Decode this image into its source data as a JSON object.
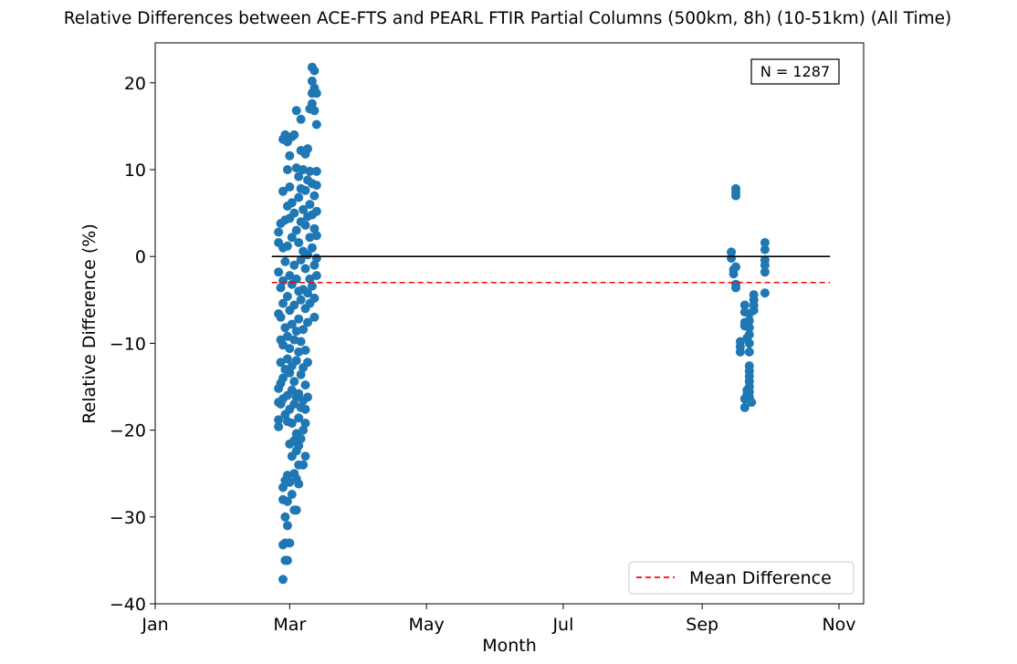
{
  "chart_data": {
    "type": "scatter",
    "title": "Relative Differences between ACE-FTS and PEARL FTIR Partial Columns (500km, 8h) (10-51km) (All Time)",
    "xlabel": "Month",
    "ylabel": "Relative Difference (%)",
    "xlim": [
      "2000-01-01",
      "2000-11-12"
    ],
    "ylim": [
      -40,
      24.6
    ],
    "x_ticks": [
      {
        "label": "Jan",
        "date": "2000-01-01"
      },
      {
        "label": "Mar",
        "date": "2000-03-01"
      },
      {
        "label": "May",
        "date": "2000-05-01"
      },
      {
        "label": "Jul",
        "date": "2000-07-01"
      },
      {
        "label": "Sep",
        "date": "2000-09-01"
      },
      {
        "label": "Nov",
        "date": "2000-11-01"
      }
    ],
    "y_ticks": [
      20,
      10,
      0,
      -10,
      -20,
      -30,
      -40
    ],
    "y_tick_labels": [
      "20",
      "10",
      "0",
      "−10",
      "−20",
      "−30",
      "−40"
    ],
    "annotation": "N = 1287",
    "legend": {
      "position": "lower-right",
      "entries": [
        "Mean Difference"
      ]
    },
    "grid": false,
    "zero_line": {
      "y": 0,
      "x_start": "2000-02-22",
      "x_end": "2000-10-28",
      "color": "#000000"
    },
    "mean_line": {
      "name": "Mean Difference",
      "y": -3,
      "x_start": "2000-02-22",
      "x_end": "2000-10-28",
      "color": "#ff0000",
      "style": "dashed"
    },
    "series": [
      {
        "color": "#1f77b4",
        "points": [
          [
            "2000-02-25",
            2.8
          ],
          [
            "2000-02-25",
            1.6
          ],
          [
            "2000-02-25",
            -1.8
          ],
          [
            "2000-02-25",
            -6.6
          ],
          [
            "2000-02-25",
            -15.2
          ],
          [
            "2000-02-25",
            -16.8
          ],
          [
            "2000-02-25",
            -18.8
          ],
          [
            "2000-02-25",
            -19.6
          ],
          [
            "2000-02-26",
            3.8
          ],
          [
            "2000-02-26",
            -3.6
          ],
          [
            "2000-02-26",
            -7.0
          ],
          [
            "2000-02-26",
            -9.6
          ],
          [
            "2000-02-26",
            -12.2
          ],
          [
            "2000-02-26",
            -14.6
          ],
          [
            "2000-02-26",
            -17.0
          ],
          [
            "2000-02-27",
            13.5
          ],
          [
            "2000-02-27",
            7.5
          ],
          [
            "2000-02-27",
            1.0
          ],
          [
            "2000-02-27",
            -2.8
          ],
          [
            "2000-02-27",
            -5.4
          ],
          [
            "2000-02-27",
            -10.2
          ],
          [
            "2000-02-27",
            -14.0
          ],
          [
            "2000-02-27",
            -16.4
          ],
          [
            "2000-02-27",
            -26.6
          ],
          [
            "2000-02-27",
            -28.0
          ],
          [
            "2000-02-27",
            -33.2
          ],
          [
            "2000-02-27",
            -37.2
          ],
          [
            "2000-02-28",
            14.0
          ],
          [
            "2000-02-28",
            4.2
          ],
          [
            "2000-02-28",
            -0.6
          ],
          [
            "2000-02-28",
            -8.2
          ],
          [
            "2000-02-28",
            -13.0
          ],
          [
            "2000-02-28",
            -18.2
          ],
          [
            "2000-02-28",
            -25.8
          ],
          [
            "2000-02-28",
            -30.0
          ],
          [
            "2000-02-28",
            -33.0
          ],
          [
            "2000-02-28",
            -35.0
          ],
          [
            "2000-02-29",
            13.2
          ],
          [
            "2000-02-29",
            10.0
          ],
          [
            "2000-02-29",
            5.8
          ],
          [
            "2000-02-29",
            1.2
          ],
          [
            "2000-02-29",
            -4.6
          ],
          [
            "2000-02-29",
            -9.2
          ],
          [
            "2000-02-29",
            -11.8
          ],
          [
            "2000-02-29",
            -16.0
          ],
          [
            "2000-02-29",
            -19.0
          ],
          [
            "2000-02-29",
            -25.2
          ],
          [
            "2000-02-29",
            -28.2
          ],
          [
            "2000-02-29",
            -31.0
          ],
          [
            "2000-02-29",
            -35.0
          ],
          [
            "2000-03-01",
            11.6
          ],
          [
            "2000-03-01",
            8.0
          ],
          [
            "2000-03-01",
            4.4
          ],
          [
            "2000-03-01",
            -2.2
          ],
          [
            "2000-03-01",
            -6.2
          ],
          [
            "2000-03-01",
            -10.6
          ],
          [
            "2000-03-01",
            -13.4
          ],
          [
            "2000-03-01",
            -17.6
          ],
          [
            "2000-03-01",
            -21.6
          ],
          [
            "2000-03-01",
            -26.0
          ],
          [
            "2000-03-01",
            -33.0
          ],
          [
            "2000-03-02",
            13.8
          ],
          [
            "2000-03-02",
            6.2
          ],
          [
            "2000-03-02",
            2.2
          ],
          [
            "2000-03-02",
            -3.2
          ],
          [
            "2000-03-02",
            -7.8
          ],
          [
            "2000-03-02",
            -12.6
          ],
          [
            "2000-03-02",
            -15.4
          ],
          [
            "2000-03-02",
            -19.2
          ],
          [
            "2000-03-02",
            -23.0
          ],
          [
            "2000-03-02",
            -27.4
          ],
          [
            "2000-03-03",
            14.0
          ],
          [
            "2000-03-03",
            5.0
          ],
          [
            "2000-03-03",
            -1.0
          ],
          [
            "2000-03-03",
            -5.6
          ],
          [
            "2000-03-03",
            -9.6
          ],
          [
            "2000-03-03",
            -14.4
          ],
          [
            "2000-03-03",
            -17.0
          ],
          [
            "2000-03-03",
            -21.2
          ],
          [
            "2000-03-03",
            -25.0
          ],
          [
            "2000-03-03",
            -29.2
          ],
          [
            "2000-03-04",
            16.8
          ],
          [
            "2000-03-04",
            10.2
          ],
          [
            "2000-03-04",
            3.0
          ],
          [
            "2000-03-04",
            -2.6
          ],
          [
            "2000-03-04",
            -8.6
          ],
          [
            "2000-03-04",
            -12.0
          ],
          [
            "2000-03-04",
            -16.2
          ],
          [
            "2000-03-04",
            -20.4
          ],
          [
            "2000-03-04",
            -22.4
          ],
          [
            "2000-03-04",
            -25.6
          ],
          [
            "2000-03-04",
            -29.2
          ],
          [
            "2000-03-05",
            9.2
          ],
          [
            "2000-03-05",
            6.8
          ],
          [
            "2000-03-05",
            1.6
          ],
          [
            "2000-03-05",
            -4.0
          ],
          [
            "2000-03-05",
            -7.2
          ],
          [
            "2000-03-05",
            -11.0
          ],
          [
            "2000-03-05",
            -15.8
          ],
          [
            "2000-03-05",
            -18.6
          ],
          [
            "2000-03-05",
            -21.8
          ],
          [
            "2000-03-05",
            -24.0
          ],
          [
            "2000-03-05",
            -26.2
          ],
          [
            "2000-03-06",
            15.8
          ],
          [
            "2000-03-06",
            12.2
          ],
          [
            "2000-03-06",
            7.8
          ],
          [
            "2000-03-06",
            4.0
          ],
          [
            "2000-03-06",
            -0.4
          ],
          [
            "2000-03-06",
            -5.0
          ],
          [
            "2000-03-06",
            -9.8
          ],
          [
            "2000-03-06",
            -13.6
          ],
          [
            "2000-03-06",
            -17.4
          ],
          [
            "2000-03-06",
            -21.0
          ],
          [
            "2000-03-07",
            10.0
          ],
          [
            "2000-03-07",
            5.4
          ],
          [
            "2000-03-07",
            0.6
          ],
          [
            "2000-03-07",
            -3.8
          ],
          [
            "2000-03-07",
            -8.4
          ],
          [
            "2000-03-07",
            -12.8
          ],
          [
            "2000-03-07",
            -16.6
          ],
          [
            "2000-03-07",
            -20.0
          ],
          [
            "2000-03-07",
            -24.0
          ],
          [
            "2000-03-08",
            11.8
          ],
          [
            "2000-03-08",
            7.6
          ],
          [
            "2000-03-08",
            3.6
          ],
          [
            "2000-03-08",
            -1.4
          ],
          [
            "2000-03-08",
            -6.0
          ],
          [
            "2000-03-08",
            -10.8
          ],
          [
            "2000-03-08",
            -14.8
          ],
          [
            "2000-03-08",
            -17.6
          ],
          [
            "2000-03-08",
            -19.2
          ],
          [
            "2000-03-08",
            -23.0
          ],
          [
            "2000-03-09",
            12.4
          ],
          [
            "2000-03-09",
            8.8
          ],
          [
            "2000-03-09",
            4.6
          ],
          [
            "2000-03-09",
            0.2
          ],
          [
            "2000-03-09",
            -4.2
          ],
          [
            "2000-03-09",
            -7.6
          ],
          [
            "2000-03-09",
            -12.2
          ],
          [
            "2000-03-09",
            -16.2
          ],
          [
            "2000-03-10",
            17.0
          ],
          [
            "2000-03-10",
            9.8
          ],
          [
            "2000-03-10",
            6.0
          ],
          [
            "2000-03-10",
            2.2
          ],
          [
            "2000-03-10",
            -2.6
          ],
          [
            "2000-03-10",
            -5.4
          ],
          [
            "2000-03-11",
            21.8
          ],
          [
            "2000-03-11",
            20.2
          ],
          [
            "2000-03-11",
            18.8
          ],
          [
            "2000-03-11",
            17.6
          ],
          [
            "2000-03-11",
            8.4
          ],
          [
            "2000-03-11",
            4.8
          ],
          [
            "2000-03-11",
            1.0
          ],
          [
            "2000-03-11",
            -3.4
          ],
          [
            "2000-03-12",
            21.4
          ],
          [
            "2000-03-12",
            19.4
          ],
          [
            "2000-03-12",
            16.8
          ],
          [
            "2000-03-12",
            7.0
          ],
          [
            "2000-03-12",
            3.2
          ],
          [
            "2000-03-12",
            -1.0
          ],
          [
            "2000-03-12",
            -4.8
          ],
          [
            "2000-03-12",
            -7.0
          ],
          [
            "2000-03-13",
            18.8
          ],
          [
            "2000-03-13",
            15.2
          ],
          [
            "2000-03-13",
            9.8
          ],
          [
            "2000-03-13",
            8.2
          ],
          [
            "2000-03-13",
            5.2
          ],
          [
            "2000-03-13",
            2.4
          ],
          [
            "2000-03-13",
            -0.2
          ],
          [
            "2000-03-13",
            -2.2
          ],
          [
            "2000-09-14",
            0.5
          ],
          [
            "2000-09-14",
            -0.2
          ],
          [
            "2000-09-15",
            -1.5
          ],
          [
            "2000-09-15",
            -2.0
          ],
          [
            "2000-09-16",
            7.8
          ],
          [
            "2000-09-16",
            7.4
          ],
          [
            "2000-09-16",
            7.0
          ],
          [
            "2000-09-16",
            -1.2
          ],
          [
            "2000-09-16",
            -3.2
          ],
          [
            "2000-09-16",
            -3.6
          ],
          [
            "2000-09-18",
            -9.8
          ],
          [
            "2000-09-18",
            -10.4
          ],
          [
            "2000-09-18",
            -11.0
          ],
          [
            "2000-09-20",
            -5.6
          ],
          [
            "2000-09-20",
            -6.4
          ],
          [
            "2000-09-20",
            -7.6
          ],
          [
            "2000-09-20",
            -8.0
          ],
          [
            "2000-09-20",
            -16.4
          ],
          [
            "2000-09-20",
            -17.4
          ],
          [
            "2000-09-21",
            -9.4
          ],
          [
            "2000-09-21",
            -15.4
          ],
          [
            "2000-09-21",
            -15.8
          ],
          [
            "2000-09-22",
            -6.6
          ],
          [
            "2000-09-22",
            -7.4
          ],
          [
            "2000-09-22",
            -8.2
          ],
          [
            "2000-09-22",
            -9.0
          ],
          [
            "2000-09-22",
            -10.0
          ],
          [
            "2000-09-22",
            -11.0
          ],
          [
            "2000-09-22",
            -12.6
          ],
          [
            "2000-09-22",
            -13.2
          ],
          [
            "2000-09-22",
            -13.8
          ],
          [
            "2000-09-22",
            -14.4
          ],
          [
            "2000-09-22",
            -15.0
          ],
          [
            "2000-09-22",
            -15.6
          ],
          [
            "2000-09-22",
            -16.2
          ],
          [
            "2000-09-23",
            -16.8
          ],
          [
            "2000-09-24",
            -4.4
          ],
          [
            "2000-09-24",
            -5.0
          ],
          [
            "2000-09-24",
            -5.6
          ],
          [
            "2000-09-24",
            -6.2
          ],
          [
            "2000-09-29",
            1.6
          ],
          [
            "2000-09-29",
            0.8
          ],
          [
            "2000-09-29",
            -0.4
          ],
          [
            "2000-09-29",
            -1.0
          ],
          [
            "2000-09-29",
            -1.8
          ],
          [
            "2000-09-29",
            -4.2
          ]
        ]
      }
    ]
  }
}
